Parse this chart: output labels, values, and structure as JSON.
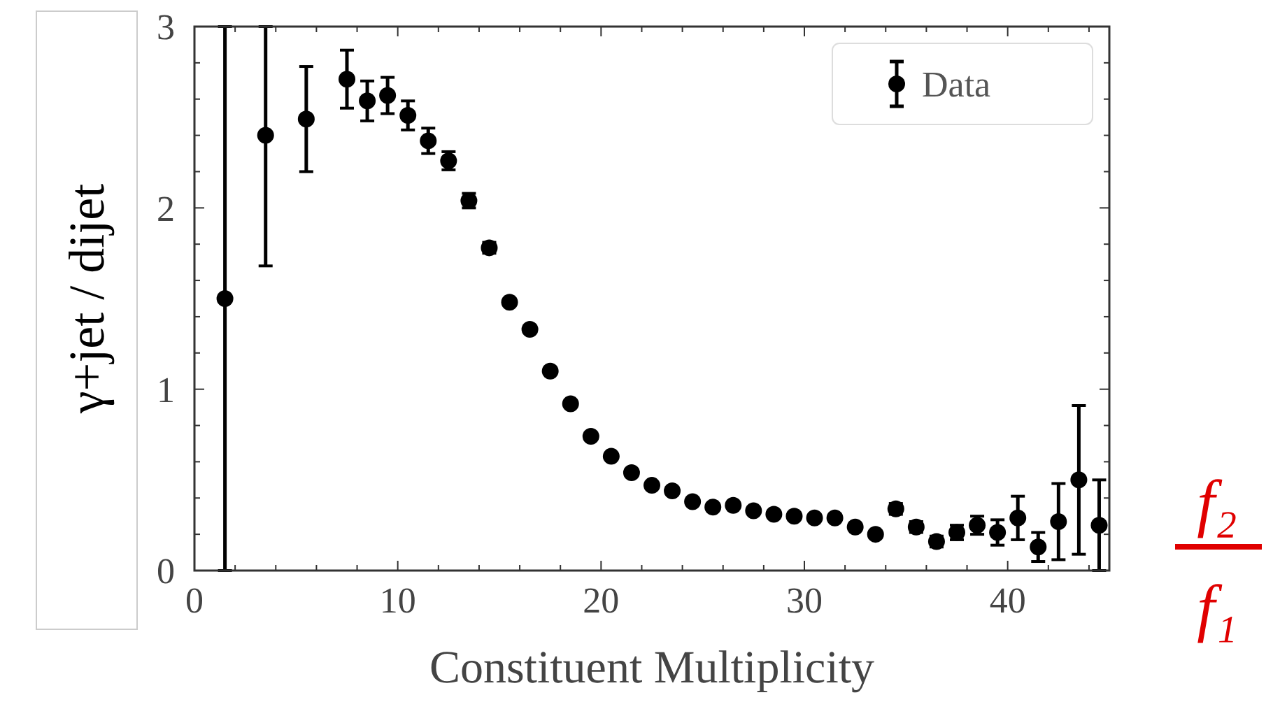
{
  "chart_data": {
    "type": "scatter",
    "xlabel": "Constituent Multiplicity",
    "ylabel": "γ+jet / dijet",
    "x": [
      1.5,
      3.5,
      5.5,
      7.5,
      8.5,
      9.5,
      10.5,
      11.5,
      12.5,
      13.5,
      14.5,
      15.5,
      16.5,
      17.5,
      18.5,
      19.5,
      20.5,
      21.5,
      22.5,
      23.5,
      24.5,
      25.5,
      26.5,
      27.5,
      28.5,
      29.5,
      30.5,
      31.5,
      32.5,
      33.5,
      34.5,
      35.5,
      36.5,
      37.5,
      38.5,
      39.5,
      40.5,
      41.5,
      42.5,
      43.5,
      44.5
    ],
    "series": [
      {
        "name": "Data",
        "color": "#000000",
        "values": [
          1.5,
          2.4,
          2.49,
          2.71,
          2.59,
          2.62,
          2.51,
          2.37,
          2.26,
          2.04,
          1.78,
          1.48,
          1.33,
          1.1,
          0.92,
          0.74,
          0.63,
          0.54,
          0.47,
          0.44,
          0.38,
          0.35,
          0.36,
          0.33,
          0.31,
          0.3,
          0.29,
          0.29,
          0.24,
          0.2,
          0.34,
          0.24,
          0.16,
          0.21,
          0.25,
          0.21,
          0.29,
          0.13,
          0.27,
          0.5,
          0.25
        ],
        "errors": [
          1.5,
          [
            1.68,
            3
          ],
          0.29,
          0.16,
          0.11,
          0.1,
          0.08,
          0.07,
          0.05,
          0.04,
          0.03,
          null,
          null,
          null,
          null,
          null,
          null,
          null,
          null,
          null,
          null,
          null,
          null,
          null,
          null,
          null,
          null,
          null,
          null,
          null,
          0.03,
          0.03,
          0.03,
          0.04,
          0.05,
          0.07,
          0.12,
          0.08,
          0.21,
          0.41,
          0.25
        ]
      }
    ],
    "xlim": [
      0,
      45
    ],
    "ylim": [
      0,
      3
    ],
    "xticks": [
      0,
      {
        "value": 2,
        "label": null
      },
      {
        "value": 4,
        "label": null
      },
      {
        "value": 6,
        "label": null
      },
      {
        "value": 8,
        "label": null
      },
      10,
      {
        "value": 12,
        "label": null
      },
      {
        "value": 14,
        "label": null
      },
      {
        "value": 16,
        "label": null
      },
      {
        "value": 18,
        "label": null
      },
      20,
      {
        "value": 22,
        "label": null
      },
      {
        "value": 24,
        "label": null
      },
      {
        "value": 26,
        "label": null
      },
      {
        "value": 28,
        "label": null
      },
      30,
      {
        "value": 32,
        "label": null
      },
      {
        "value": 34,
        "label": null
      },
      {
        "value": 36,
        "label": null
      },
      {
        "value": 38,
        "label": null
      },
      40,
      {
        "value": 42,
        "label": null
      },
      {
        "value": 44,
        "label": null
      }
    ],
    "yticks": [
      0,
      {
        "value": 0.2,
        "label": null
      },
      {
        "value": 0.4,
        "label": null
      },
      {
        "value": 0.6,
        "label": null
      },
      {
        "value": 0.8,
        "label": null
      },
      1,
      {
        "value": 1.2,
        "label": null
      },
      {
        "value": 1.4,
        "label": null
      },
      {
        "value": 1.6,
        "label": null
      },
      {
        "value": 1.8,
        "label": null
      },
      2,
      {
        "value": 2.2,
        "label": null
      },
      {
        "value": 2.4,
        "label": null
      },
      {
        "value": 2.6,
        "label": null
      },
      {
        "value": 2.8,
        "label": null
      },
      3
    ],
    "marker": "circle",
    "legend": "top right",
    "grid": false,
    "annotations": [
      "f₂",
      "f₁"
    ]
  }
}
